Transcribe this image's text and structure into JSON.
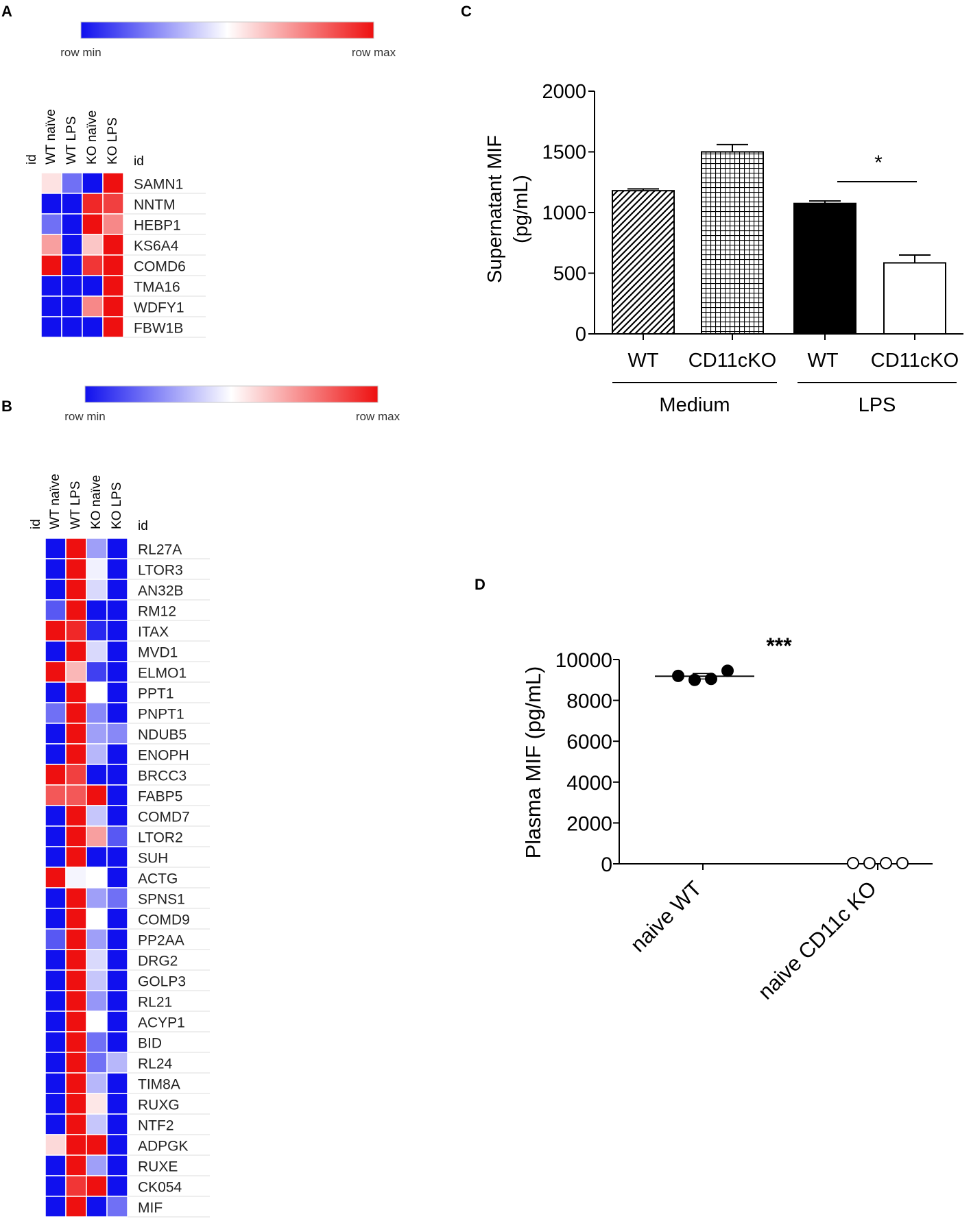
{
  "panels": {
    "A": "A",
    "B": "B",
    "C": "C",
    "D": "D"
  },
  "colors": {
    "low": "#1010ee",
    "mid": "#ffffff",
    "high": "#ee1010",
    "bar_black": "#000000",
    "grid_line": "#dddddd"
  },
  "chart_data": [
    {
      "id": "A",
      "type": "heatmap",
      "scale": {
        "min_label": "row min",
        "max_label": "row max"
      },
      "id_label": "id",
      "row_label_header": "id",
      "columns": [
        "WT naïve",
        "WT LPS",
        "KO naïve",
        "KO LPS"
      ],
      "rows": [
        {
          "label": "SAMN1",
          "values": [
            0.56,
            0.2,
            0.0,
            1.0
          ]
        },
        {
          "label": "NNTM",
          "values": [
            0.0,
            0.0,
            0.95,
            0.9
          ]
        },
        {
          "label": "HEBP1",
          "values": [
            0.2,
            0.0,
            1.0,
            0.75
          ]
        },
        {
          "label": "KS6A4",
          "values": [
            0.7,
            0.0,
            0.62,
            1.0
          ]
        },
        {
          "label": "COMD6",
          "values": [
            1.0,
            0.0,
            0.92,
            1.0
          ]
        },
        {
          "label": "TMA16",
          "values": [
            0.0,
            0.0,
            0.0,
            1.0
          ]
        },
        {
          "label": "WDFY1",
          "values": [
            0.0,
            0.0,
            0.75,
            1.0
          ]
        },
        {
          "label": "FBW1B",
          "values": [
            0.0,
            0.0,
            0.0,
            1.0
          ]
        }
      ]
    },
    {
      "id": "B",
      "type": "heatmap",
      "scale": {
        "min_label": "row min",
        "max_label": "row max"
      },
      "id_label": "id",
      "row_label_header": "id",
      "columns": [
        "WT naïve",
        "WT LPS",
        "KO naïve",
        "KO LPS"
      ],
      "rows": [
        {
          "label": "RL27A",
          "values": [
            0.0,
            1.0,
            0.3,
            0.0
          ]
        },
        {
          "label": "LTOR3",
          "values": [
            0.0,
            1.0,
            0.47,
            0.0
          ]
        },
        {
          "label": "AN32B",
          "values": [
            0.0,
            1.0,
            0.42,
            0.0
          ]
        },
        {
          "label": "RM12",
          "values": [
            0.15,
            1.0,
            0.0,
            0.0
          ]
        },
        {
          "label": "ITAX",
          "values": [
            1.0,
            0.95,
            0.05,
            0.0
          ]
        },
        {
          "label": "MVD1",
          "values": [
            0.0,
            1.0,
            0.42,
            0.0
          ]
        },
        {
          "label": "ELMO1",
          "values": [
            1.0,
            0.65,
            0.1,
            0.0
          ]
        },
        {
          "label": "PPT1",
          "values": [
            0.0,
            1.0,
            0.5,
            0.0
          ]
        },
        {
          "label": "PNPT1",
          "values": [
            0.2,
            1.0,
            0.25,
            0.0
          ]
        },
        {
          "label": "NDUB5",
          "values": [
            0.0,
            1.0,
            0.3,
            0.25
          ]
        },
        {
          "label": "ENOPH",
          "values": [
            0.0,
            1.0,
            0.35,
            0.0
          ]
        },
        {
          "label": "BRCC3",
          "values": [
            1.0,
            0.9,
            0.0,
            0.0
          ]
        },
        {
          "label": "FABP5",
          "values": [
            0.85,
            0.85,
            1.0,
            0.0
          ]
        },
        {
          "label": "COMD7",
          "values": [
            0.0,
            1.0,
            0.38,
            0.0
          ]
        },
        {
          "label": "LTOR2",
          "values": [
            0.0,
            1.0,
            0.7,
            0.15
          ]
        },
        {
          "label": "SUH",
          "values": [
            0.0,
            1.0,
            0.0,
            0.0
          ]
        },
        {
          "label": "ACTG",
          "values": [
            1.0,
            0.48,
            0.5,
            0.0
          ]
        },
        {
          "label": "SPNS1",
          "values": [
            0.0,
            1.0,
            0.3,
            0.2
          ]
        },
        {
          "label": "COMD9",
          "values": [
            0.0,
            1.0,
            0.5,
            0.0
          ]
        },
        {
          "label": "PP2AA",
          "values": [
            0.15,
            1.0,
            0.3,
            0.0
          ]
        },
        {
          "label": "DRG2",
          "values": [
            0.0,
            1.0,
            0.42,
            0.0
          ]
        },
        {
          "label": "GOLP3",
          "values": [
            0.0,
            1.0,
            0.38,
            0.0
          ]
        },
        {
          "label": "RL21",
          "values": [
            0.0,
            1.0,
            0.28,
            0.0
          ]
        },
        {
          "label": "ACYP1",
          "values": [
            0.0,
            1.0,
            0.5,
            0.0
          ]
        },
        {
          "label": "BID",
          "values": [
            0.0,
            1.0,
            0.2,
            0.0
          ]
        },
        {
          "label": "RL24",
          "values": [
            0.0,
            1.0,
            0.2,
            0.35
          ]
        },
        {
          "label": "TIM8A",
          "values": [
            0.0,
            1.0,
            0.35,
            0.0
          ]
        },
        {
          "label": "RUXG",
          "values": [
            0.0,
            1.0,
            0.55,
            0.0
          ]
        },
        {
          "label": "NTF2",
          "values": [
            0.0,
            1.0,
            0.38,
            0.0
          ]
        },
        {
          "label": "ADPGK",
          "values": [
            0.58,
            1.0,
            1.0,
            0.0
          ]
        },
        {
          "label": "RUXE",
          "values": [
            0.0,
            1.0,
            0.3,
            0.0
          ]
        },
        {
          "label": "CK054",
          "values": [
            0.0,
            0.92,
            1.0,
            0.0
          ]
        },
        {
          "label": "MIF",
          "values": [
            0.0,
            1.0,
            0.0,
            0.2
          ]
        }
      ]
    },
    {
      "id": "C",
      "type": "bar",
      "ylabel": "Supernatant MIF",
      "ylabel_units": "(pg/mL)",
      "ylim": [
        0,
        2000
      ],
      "yticks": [
        "0",
        "500",
        "1000",
        "1500",
        "2000"
      ],
      "categories": [
        "WT",
        "CD11cKO",
        "WT",
        "CD11cKO"
      ],
      "values": [
        1180,
        1500,
        1075,
        585
      ],
      "errors": [
        15,
        60,
        20,
        65
      ],
      "patterns": [
        "diagonal",
        "grid",
        "solid",
        "open"
      ],
      "groups": [
        {
          "label": "Medium",
          "bars": [
            0,
            1
          ]
        },
        {
          "label": "LPS",
          "bars": [
            2,
            3
          ]
        }
      ],
      "significance": {
        "label": "*",
        "between": [
          2,
          3
        ]
      }
    },
    {
      "id": "D",
      "type": "scatter",
      "ylabel": "Plasma MIF (pg/mL)",
      "ylim": [
        0,
        10000
      ],
      "yticks": [
        "0",
        "2000",
        "4000",
        "6000",
        "8000",
        "10000"
      ],
      "categories": [
        "naive WT",
        "naive CD11c KO"
      ],
      "series": [
        {
          "name": "naive WT",
          "marker": "filled",
          "mean": 9180,
          "values": [
            9200,
            9000,
            9050,
            9450
          ]
        },
        {
          "name": "naive CD11c KO",
          "marker": "open",
          "mean": 0,
          "values": [
            0,
            0,
            0,
            0
          ]
        }
      ],
      "significance": {
        "label": "***"
      }
    }
  ]
}
